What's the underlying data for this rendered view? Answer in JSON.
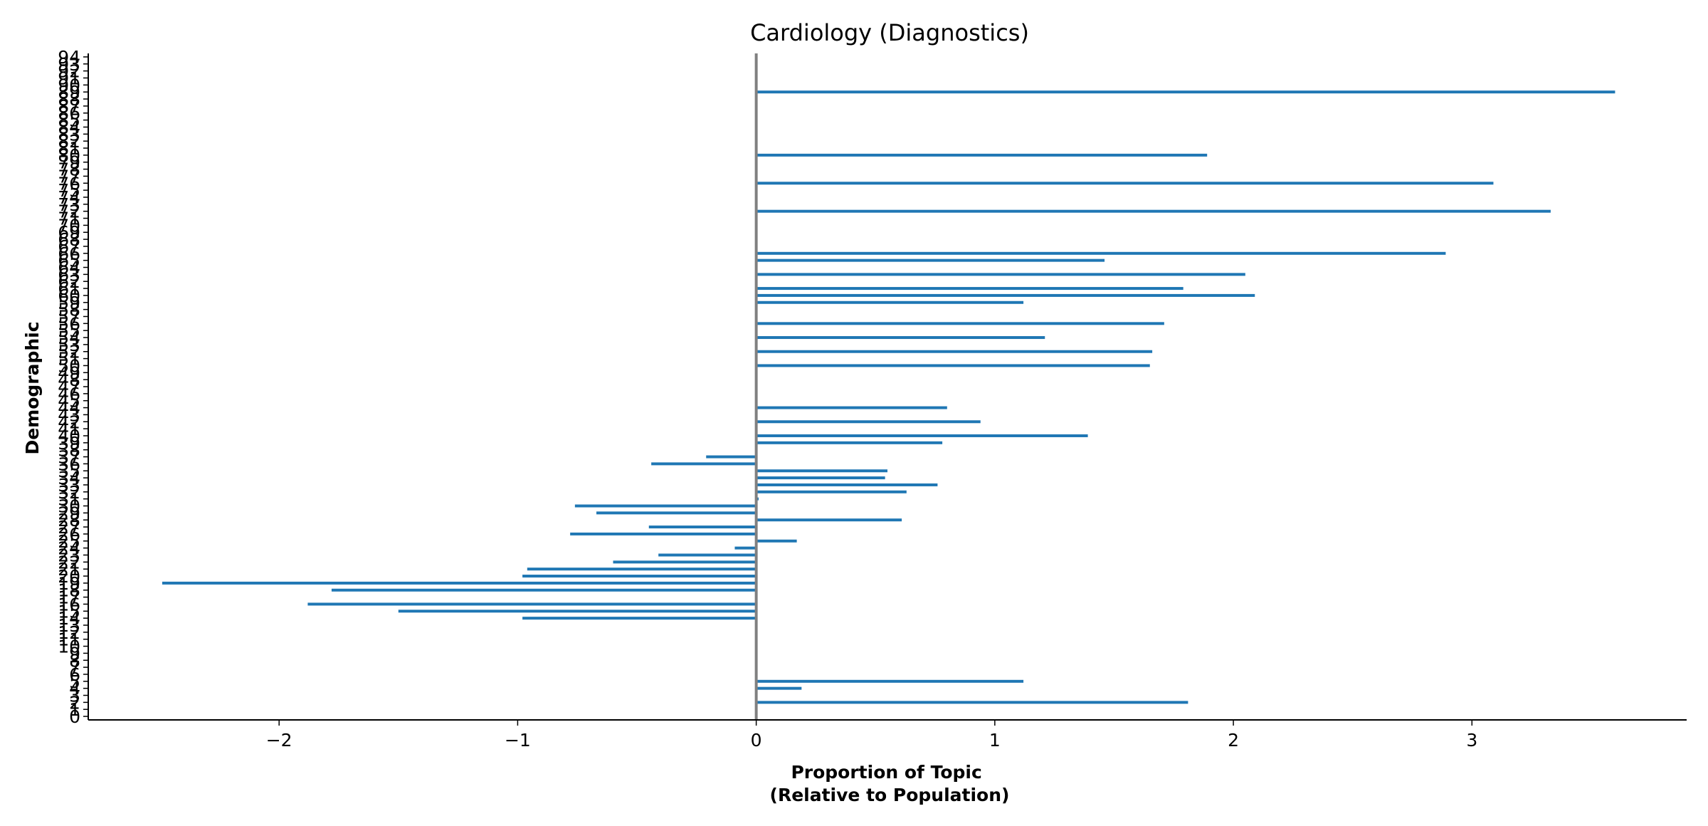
{
  "chart_data": {
    "type": "bar",
    "orientation": "horizontal",
    "title": "Cardiology (Diagnostics)",
    "xlabel_lines": [
      "Proportion of Topic",
      "(Relative to Population)"
    ],
    "ylabel": "Demographic",
    "xlim": [
      -2.8,
      3.9
    ],
    "ylim": [
      -0.5,
      94.5
    ],
    "xticks": [
      -2,
      -1,
      0,
      1,
      2,
      3
    ],
    "xtick_labels": [
      "−2",
      "−1",
      "0",
      "1",
      "2",
      "3"
    ],
    "y_categories": [
      0,
      1,
      2,
      3,
      4,
      5,
      6,
      7,
      8,
      9,
      10,
      11,
      12,
      13,
      14,
      15,
      16,
      17,
      18,
      19,
      20,
      21,
      22,
      23,
      24,
      25,
      26,
      27,
      28,
      29,
      30,
      31,
      32,
      33,
      34,
      35,
      36,
      37,
      38,
      39,
      40,
      41,
      42,
      43,
      44,
      45,
      46,
      47,
      48,
      49,
      50,
      51,
      52,
      53,
      54,
      55,
      56,
      57,
      58,
      59,
      60,
      61,
      62,
      63,
      64,
      65,
      66,
      67,
      68,
      69,
      70,
      71,
      72,
      73,
      74,
      75,
      76,
      77,
      78,
      79,
      80,
      81,
      82,
      83,
      84,
      85,
      86,
      87,
      88,
      89,
      90,
      91,
      92,
      93,
      94
    ],
    "values": [
      0,
      0,
      1.81,
      0,
      0.19,
      1.12,
      0,
      0,
      0,
      0,
      0,
      0,
      0,
      0,
      -0.98,
      -1.5,
      -1.88,
      0,
      -1.78,
      -2.49,
      -0.98,
      -0.96,
      -0.6,
      -0.41,
      -0.09,
      0.17,
      -0.78,
      -0.45,
      0.61,
      -0.67,
      -0.76,
      0.01,
      0.63,
      0.76,
      0.54,
      0.55,
      -0.44,
      -0.21,
      0,
      0.78,
      1.39,
      0,
      0.94,
      0,
      0.8,
      0,
      0,
      0,
      0,
      0,
      1.65,
      0,
      1.66,
      0,
      1.21,
      0,
      1.71,
      0,
      0,
      1.12,
      2.09,
      1.79,
      0,
      2.05,
      0,
      1.46,
      2.89,
      0,
      0,
      0,
      0,
      0,
      3.33,
      0,
      0,
      0,
      3.09,
      0,
      0,
      0,
      1.89,
      0,
      0,
      0,
      0,
      0,
      0,
      0,
      0,
      3.6,
      0,
      0,
      0,
      0,
      0
    ],
    "bar_color": "#1f77b4",
    "zero_line_color": "#808080",
    "grid": false,
    "legend": "none"
  }
}
